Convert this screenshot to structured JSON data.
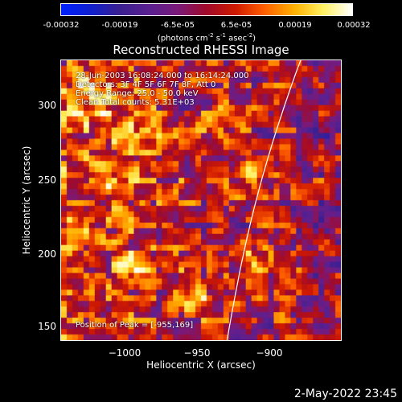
{
  "colorbar": {
    "ticks": [
      "-0.00032",
      "-0.00019",
      "-6.5e-05",
      "6.5e-05",
      "0.00019",
      "0.00032"
    ],
    "unit_text": "(photons cm",
    "unit_exp1": "-2",
    "unit_mid": " s",
    "unit_exp2": "-1",
    "unit_mid2": " asec",
    "unit_exp3": "-2",
    "unit_end": ")"
  },
  "title": "Reconstructed RHESSI Image",
  "info": {
    "line1": "28-Jun-2003 16:08:24.000 to 16:14:24.000",
    "line2": "Detectors: 3F 4F 5F 6F 7F 8F, Att 0",
    "line3": "Energy Range: 25.0 - 50.0 keV",
    "line4": "Clean     Total counts: 5.31E+03",
    "peak": "Position of Peak = [-955,169]"
  },
  "axes": {
    "xlabel": "Heliocentric X (arcsec)",
    "ylabel": "Heliocentric Y (arcsec)",
    "xticks": [
      "−1000",
      "−950",
      "−900"
    ],
    "yticks": [
      "300",
      "250",
      "200",
      "150"
    ],
    "xrange": [
      -1043,
      -863
    ],
    "yrange": [
      140,
      326
    ]
  },
  "footer": {
    "date": "2-May-2022 23:45"
  },
  "colors": {
    "colormap": [
      "#0020ff",
      "#1020d0",
      "#3a2090",
      "#5a2090",
      "#7a1a7a",
      "#a00a2a",
      "#d01a00",
      "#ff6000",
      "#ffb000",
      "#fff060",
      "#ffffff"
    ],
    "limb": "#ffffff"
  }
}
